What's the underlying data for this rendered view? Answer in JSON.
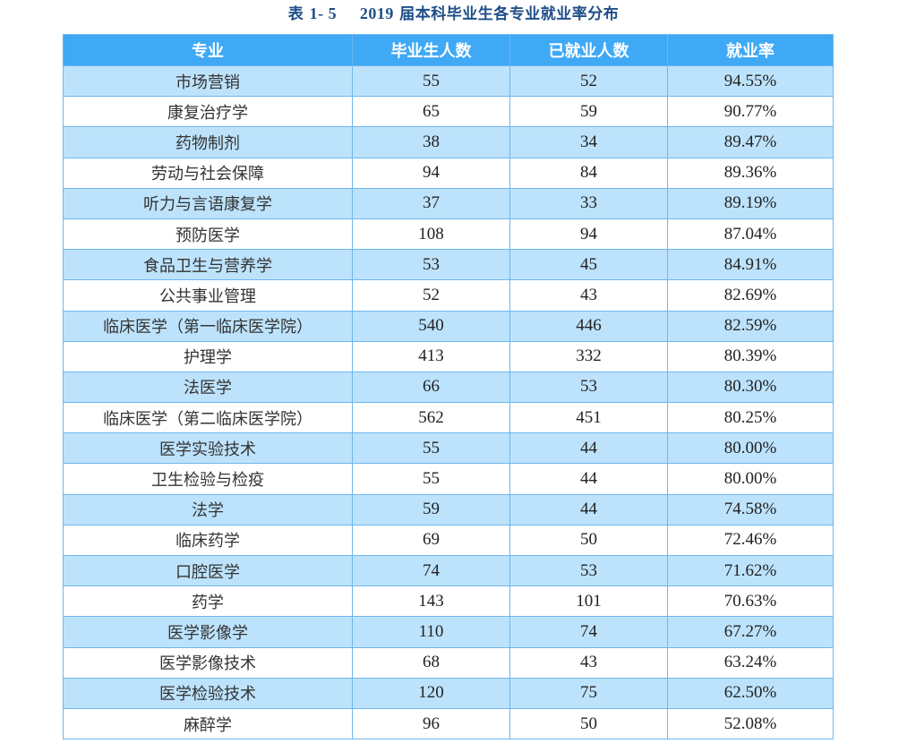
{
  "title": {
    "prefix": "表 ",
    "number": "1- 5",
    "year": "2019",
    "text": " 届本科毕业生各专业就业率分布"
  },
  "table": {
    "headers": [
      "专业",
      "毕业生人数",
      "已就业人数",
      "就业率"
    ],
    "rows": [
      {
        "major": "市场营销",
        "graduates": "55",
        "employed": "52",
        "rate": "94.55%"
      },
      {
        "major": "康复治疗学",
        "graduates": "65",
        "employed": "59",
        "rate": "90.77%"
      },
      {
        "major": "药物制剂",
        "graduates": "38",
        "employed": "34",
        "rate": "89.47%"
      },
      {
        "major": "劳动与社会保障",
        "graduates": "94",
        "employed": "84",
        "rate": "89.36%"
      },
      {
        "major": "听力与言语康复学",
        "graduates": "37",
        "employed": "33",
        "rate": "89.19%"
      },
      {
        "major": "预防医学",
        "graduates": "108",
        "employed": "94",
        "rate": "87.04%"
      },
      {
        "major": "食品卫生与营养学",
        "graduates": "53",
        "employed": "45",
        "rate": "84.91%"
      },
      {
        "major": "公共事业管理",
        "graduates": "52",
        "employed": "43",
        "rate": "82.69%"
      },
      {
        "major": "临床医学（第一临床医学院）",
        "graduates": "540",
        "employed": "446",
        "rate": "82.59%"
      },
      {
        "major": "护理学",
        "graduates": "413",
        "employed": "332",
        "rate": "80.39%"
      },
      {
        "major": "法医学",
        "graduates": "66",
        "employed": "53",
        "rate": "80.30%"
      },
      {
        "major": "临床医学（第二临床医学院）",
        "graduates": "562",
        "employed": "451",
        "rate": "80.25%"
      },
      {
        "major": "医学实验技术",
        "graduates": "55",
        "employed": "44",
        "rate": "80.00%"
      },
      {
        "major": "卫生检验与检疫",
        "graduates": "55",
        "employed": "44",
        "rate": "80.00%"
      },
      {
        "major": "法学",
        "graduates": "59",
        "employed": "44",
        "rate": "74.58%"
      },
      {
        "major": "临床药学",
        "graduates": "69",
        "employed": "50",
        "rate": "72.46%"
      },
      {
        "major": "口腔医学",
        "graduates": "74",
        "employed": "53",
        "rate": "71.62%"
      },
      {
        "major": "药学",
        "graduates": "143",
        "employed": "101",
        "rate": "70.63%"
      },
      {
        "major": "医学影像学",
        "graduates": "110",
        "employed": "74",
        "rate": "67.27%"
      },
      {
        "major": "医学影像技术",
        "graduates": "68",
        "employed": "43",
        "rate": "63.24%"
      },
      {
        "major": "医学检验技术",
        "graduates": "120",
        "employed": "75",
        "rate": "62.50%"
      },
      {
        "major": "麻醉学",
        "graduates": "96",
        "employed": "50",
        "rate": "52.08%"
      }
    ]
  },
  "colors": {
    "title": "#1f4e89",
    "header_bg": "#3fa9f5",
    "header_text": "#ffffff",
    "row_alt_bg": "#bde3fc",
    "row_bg": "#ffffff",
    "border": "#6db6ef"
  }
}
